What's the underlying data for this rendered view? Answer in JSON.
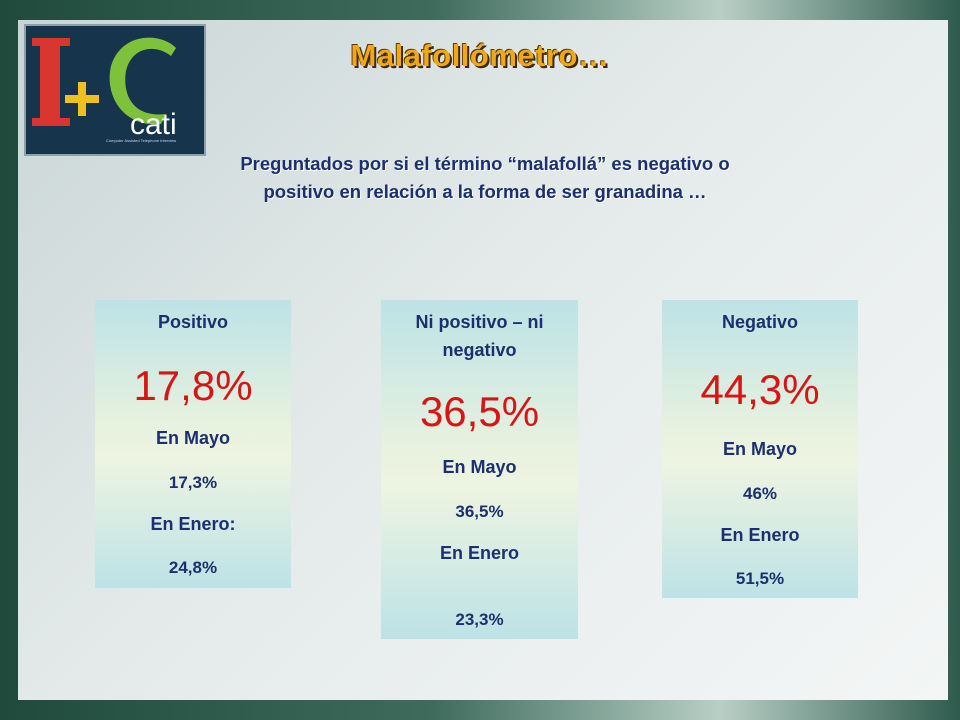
{
  "logo": {
    "brand": "cati",
    "tagline": "Computer Assisted Telephone Interview"
  },
  "title": "Malafollómetro…",
  "subtitle_line1": "Preguntados por si el término “malafollá” es negativo o",
  "subtitle_line2": "positivo en relación a la forma de ser granadina …",
  "cards": [
    {
      "label": "Positivo",
      "value": "17,8%",
      "mayo_label": "En Mayo",
      "mayo_value": "17,3%",
      "enero_label": "En Enero:",
      "enero_value": "24,8%"
    },
    {
      "label_line1": "Ni positivo – ni",
      "label_line2": "negativo",
      "value": "36,5%",
      "mayo_label": "En Mayo",
      "mayo_value": "36,5%",
      "enero_label": "En Enero",
      "enero_value": "23,3%"
    },
    {
      "label": "Negativo",
      "value": "44,3%",
      "mayo_label": "En Mayo",
      "mayo_value": "46%",
      "enero_label": "En Enero",
      "enero_value": "51,5%"
    }
  ],
  "colors": {
    "accent_title": "#f0a818",
    "text_blue": "#1c2f6e",
    "value_red": "#d81414"
  }
}
